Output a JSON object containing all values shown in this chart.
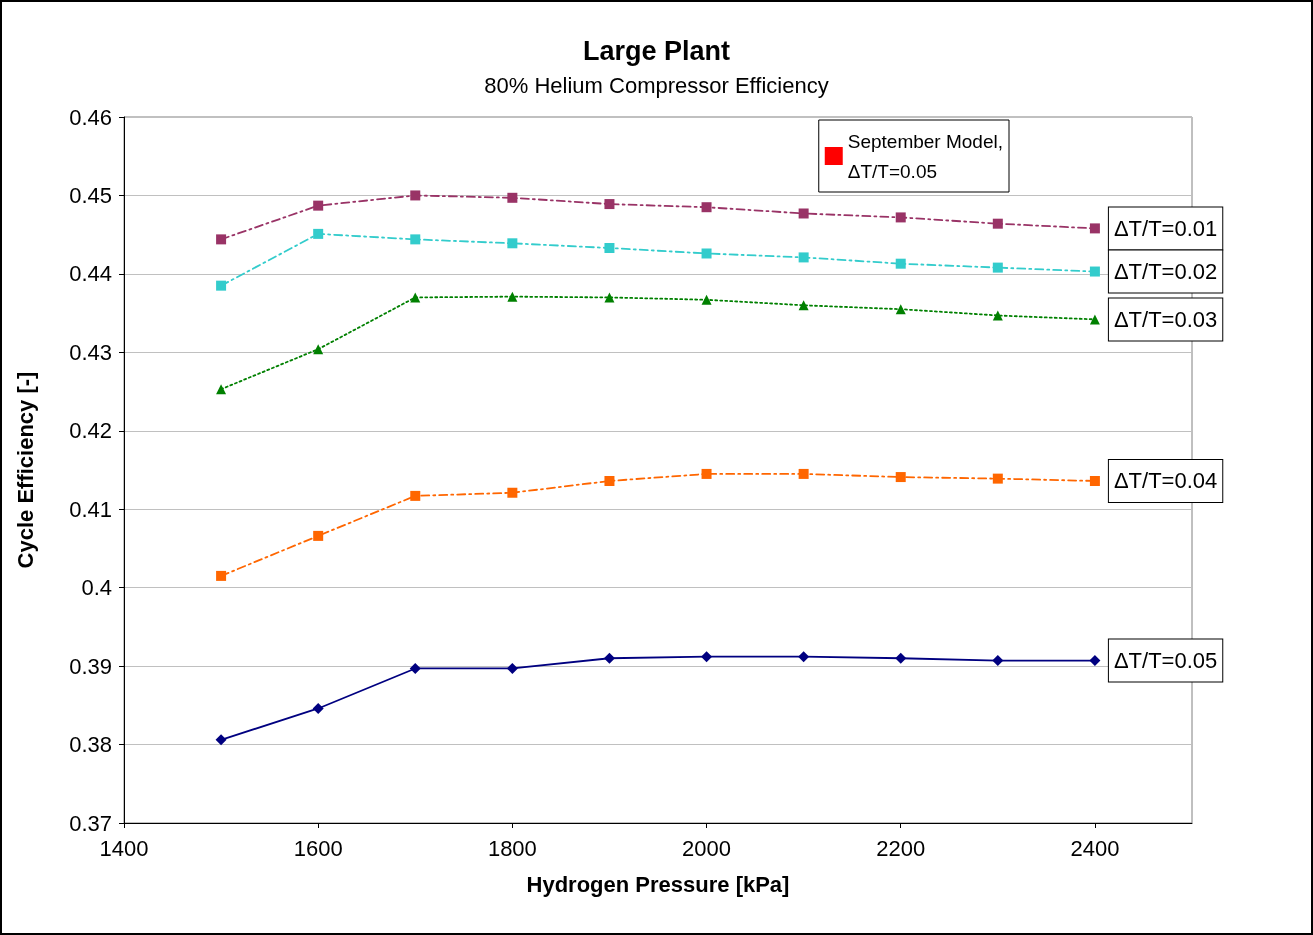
{
  "chart_data": {
    "type": "line",
    "title": "Large Plant",
    "subtitle": "80% Helium Compressor Efficiency",
    "xlabel": "Hydrogen Pressure [kPa]",
    "ylabel": "Cycle Efficiency [-]",
    "x": [
      1500,
      1600,
      1700,
      1800,
      1900,
      2000,
      2100,
      2200,
      2300,
      2400
    ],
    "series": [
      {
        "name": "ΔT/T=0.01",
        "color": "#993366",
        "marker": "square",
        "line_style": "dashed",
        "values": [
          0.4444,
          0.4487,
          0.45,
          0.4497,
          0.4489,
          0.4485,
          0.4477,
          0.4472,
          0.4464,
          0.4458
        ]
      },
      {
        "name": "ΔT/T=0.02",
        "color": "#33cccc",
        "marker": "square",
        "line_style": "dashed",
        "values": [
          0.4385,
          0.4451,
          0.4444,
          0.4439,
          0.4433,
          0.4426,
          0.4421,
          0.4413,
          0.4408,
          0.4403
        ]
      },
      {
        "name": "ΔT/T=0.03",
        "color": "#008000",
        "marker": "triangle",
        "line_style": "dotted",
        "values": [
          0.4253,
          0.4304,
          0.437,
          0.4371,
          0.437,
          0.4367,
          0.436,
          0.4355,
          0.4347,
          0.4342
        ]
      },
      {
        "name": "ΔT/T=0.04",
        "color": "#ff6600",
        "marker": "square",
        "line_style": "dashed",
        "values": [
          0.4015,
          0.4066,
          0.4117,
          0.4121,
          0.4136,
          0.4145,
          0.4145,
          0.4141,
          0.4139,
          0.4136
        ]
      },
      {
        "name": "ΔT/T=0.05",
        "color": "#000080",
        "marker": "diamond",
        "line_style": "solid",
        "values": [
          0.3806,
          0.3846,
          0.3897,
          0.3897,
          0.391,
          0.3912,
          0.3912,
          0.391,
          0.3907,
          0.3907
        ]
      },
      {
        "name": "September Model,\nΔT/T=0.05",
        "color": "#ff0000",
        "marker": "square",
        "line_style": "solid",
        "values": [
          null,
          null,
          null,
          null,
          null,
          null,
          null,
          null,
          null,
          null
        ]
      }
    ],
    "xlim": [
      1400,
      2500
    ],
    "xticks": [
      1400,
      1600,
      1800,
      2000,
      2200,
      2400
    ],
    "ylim": [
      0.37,
      0.46
    ],
    "yticks": [
      0.37,
      0.38,
      0.39,
      0.4,
      0.41,
      0.42,
      0.43,
      0.44,
      0.45,
      0.46
    ],
    "grid": "y",
    "legend": "top right"
  }
}
